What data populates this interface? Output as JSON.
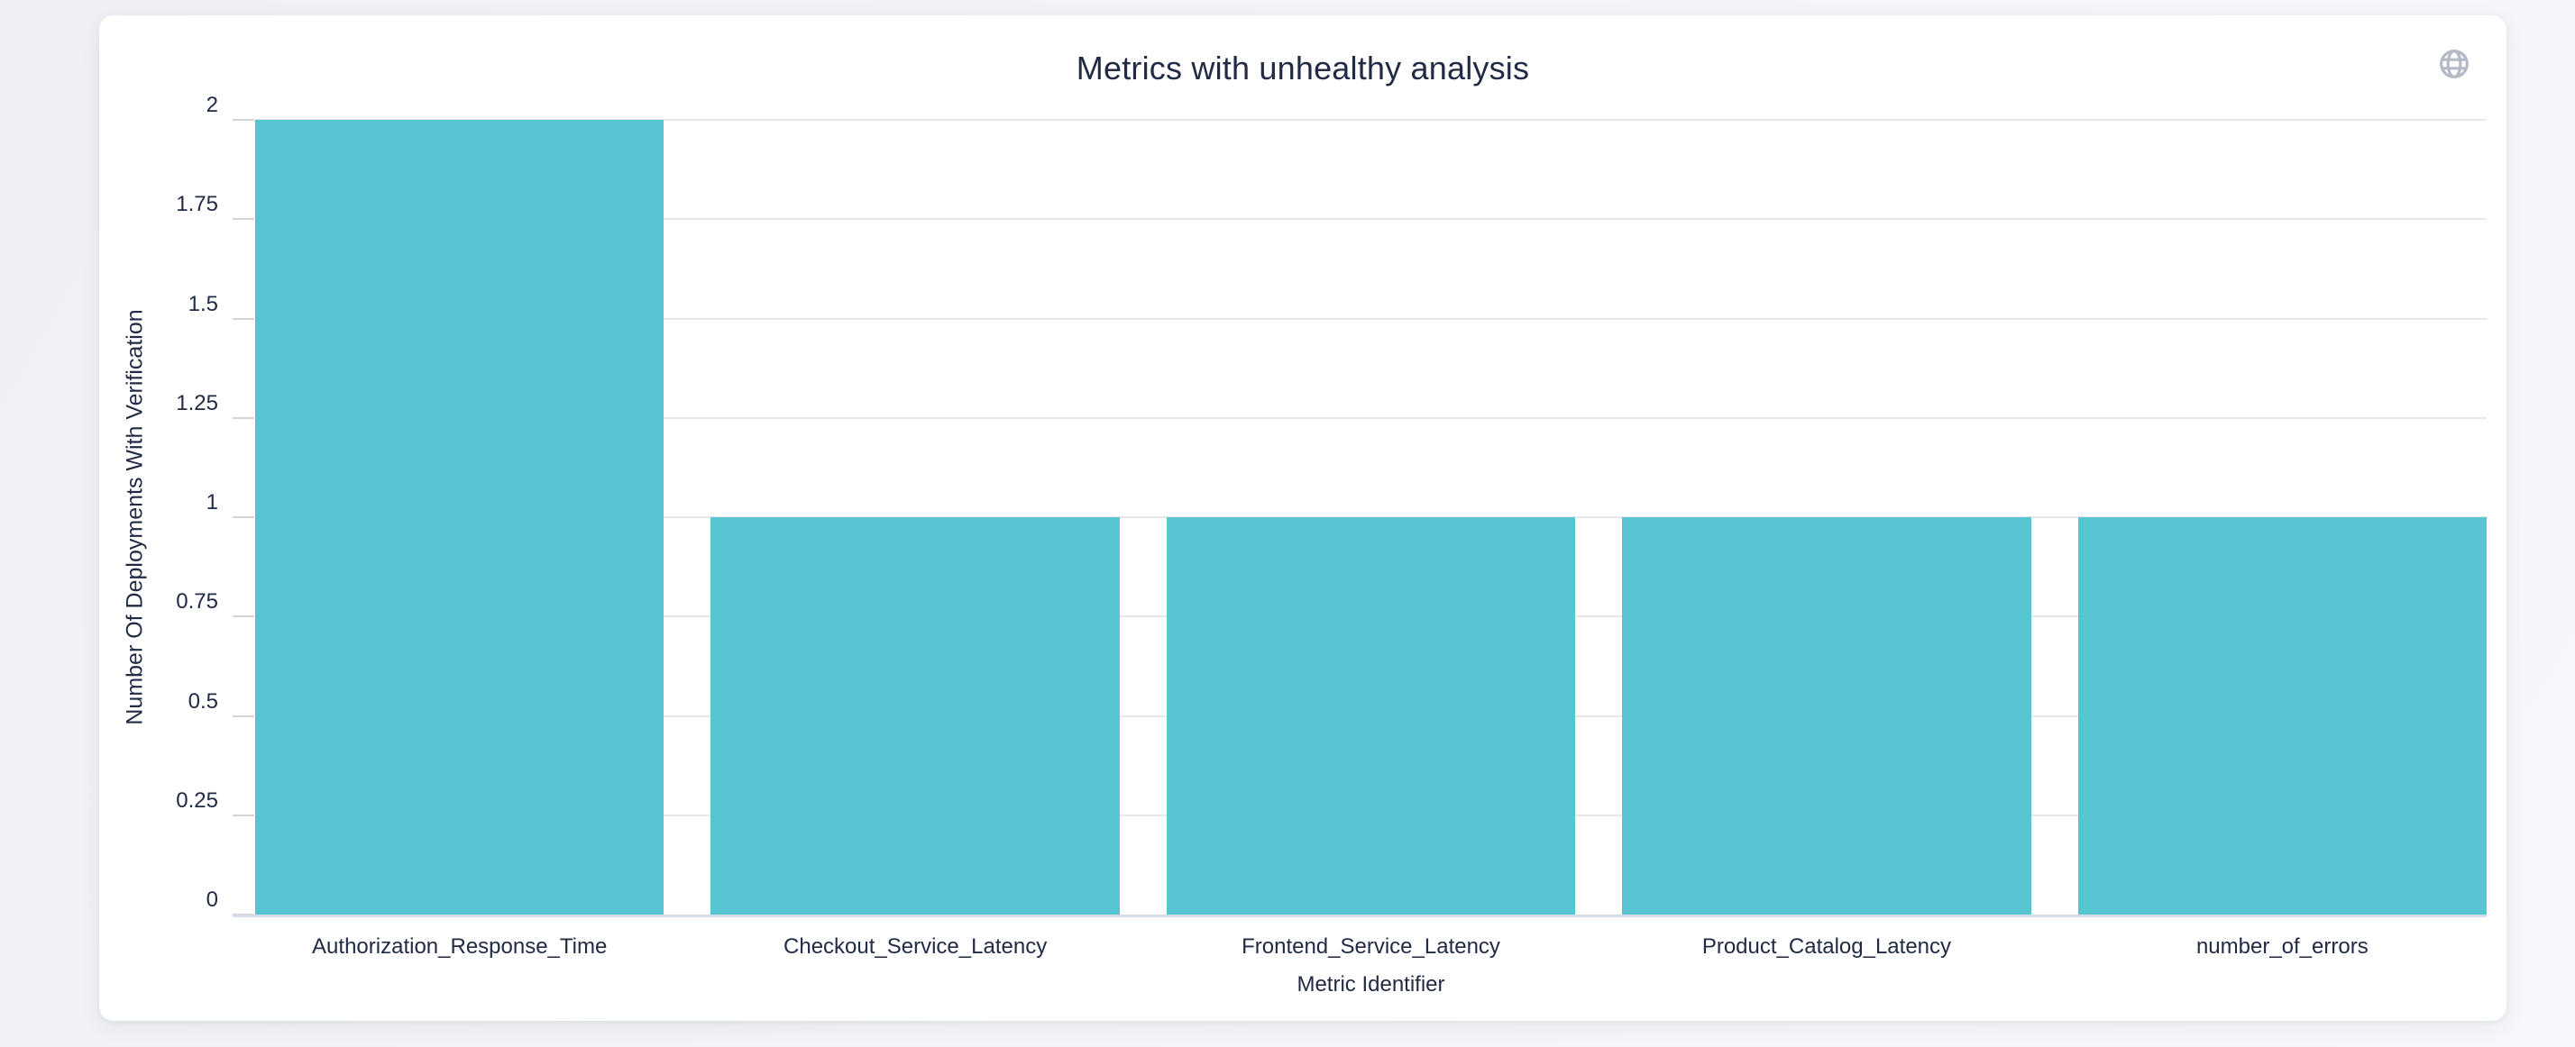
{
  "header": {
    "title": "Metrics with unhealthy analysis",
    "globe_icon": "globe",
    "globe_icon_color": "#b3b9c6"
  },
  "chart_data": {
    "type": "bar",
    "title": "Metrics with unhealthy analysis",
    "categories": [
      "Authorization_Response_Time",
      "Checkout_Service_Latency",
      "Frontend_Service_Latency",
      "Product_Catalog_Latency",
      "number_of_errors"
    ],
    "values": [
      2,
      1,
      1,
      1,
      1
    ],
    "xlabel": "Metric Identifier",
    "ylabel": "Number Of Deployments With Verification",
    "ylim": [
      0,
      2
    ],
    "ytick_step": 0.25,
    "yticks": [
      "0",
      "0.25",
      "0.5",
      "0.75",
      "1",
      "1.25",
      "1.5",
      "1.75",
      "2"
    ],
    "grid": true,
    "legend": "none",
    "bar_color": "#57c4d2",
    "gridline_color": "#e8e8e8",
    "axis_line_color": "#d6dbe8",
    "tick_color": "#d4d4d4",
    "text_color": "#222b45"
  }
}
